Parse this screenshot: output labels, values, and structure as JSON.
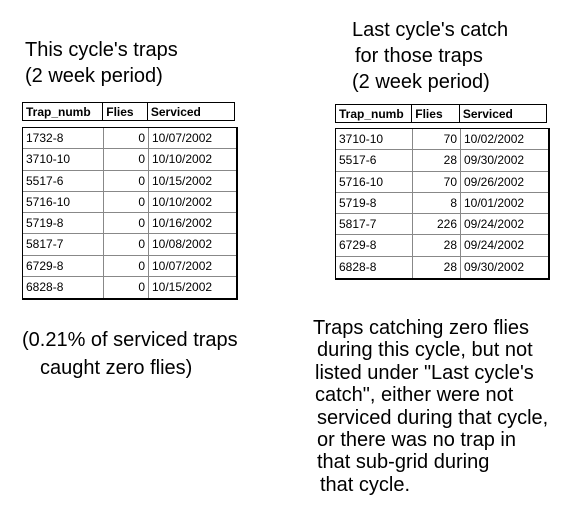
{
  "left": {
    "title": [
      "This cycle's traps",
      "(2 week period)"
    ],
    "table": {
      "header": [
        "Trap_numb",
        "Flies",
        "Serviced"
      ],
      "rows": [
        [
          "1732-8",
          0,
          "10/07/2002"
        ],
        [
          "3710-10",
          0,
          "10/10/2002"
        ],
        [
          "5517-6",
          0,
          "10/15/2002"
        ],
        [
          "5716-10",
          0,
          "10/10/2002"
        ],
        [
          "5719-8",
          0,
          "10/16/2002"
        ],
        [
          "5817-7",
          0,
          "10/08/2002"
        ],
        [
          "6729-8",
          0,
          "10/07/2002"
        ],
        [
          "6828-8",
          0,
          "10/15/2002"
        ]
      ]
    },
    "note": [
      "(0.21% of serviced traps",
      "caught zero flies)"
    ]
  },
  "right": {
    "title": [
      "Last cycle's catch",
      "for those traps",
      "(2 week period)"
    ],
    "table": {
      "header": [
        "Trap_numb",
        "Flies",
        "Serviced"
      ],
      "rows": [
        [
          "3710-10",
          70,
          "10/02/2002"
        ],
        [
          "5517-6",
          28,
          "09/30/2002"
        ],
        [
          "5716-10",
          70,
          "09/26/2002"
        ],
        [
          "5719-8",
          8,
          "10/01/2002"
        ],
        [
          "5817-7",
          226,
          "09/24/2002"
        ],
        [
          "6729-8",
          28,
          "09/24/2002"
        ],
        [
          "6828-8",
          28,
          "09/30/2002"
        ]
      ]
    },
    "note": [
      "Traps catching zero flies",
      "during this cycle, but not",
      "listed under \"Last cycle's",
      "catch\", either were not",
      "serviced during that cycle,",
      "or there was no trap in",
      "that sub-grid during",
      "that cycle."
    ]
  }
}
